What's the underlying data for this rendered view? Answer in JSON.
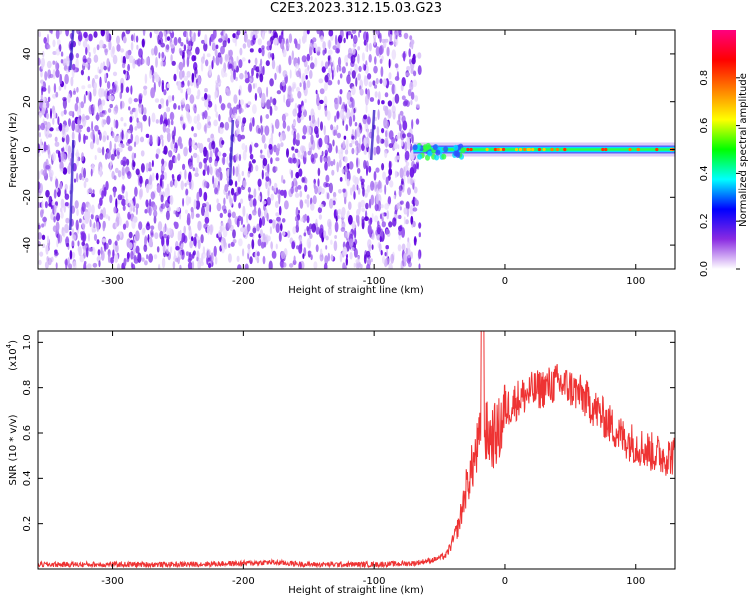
{
  "title": "C2E3.2023.312.15.03.G23",
  "chart_data": [
    {
      "type": "heatmap",
      "xlabel": "Height of straight line (km)",
      "ylabel": "Frequency (Hz)",
      "xlim": [
        -357,
        130
      ],
      "ylim": [
        -50,
        50
      ],
      "x_ticks": [
        -300,
        -200,
        -100,
        0,
        100
      ],
      "y_ticks": [
        -40,
        -20,
        0,
        20,
        40
      ],
      "noise_region_x": [
        -357,
        -65
      ],
      "signal_start_x": -70,
      "signal_freq_hz": 0,
      "colorbar": {
        "label": "Normalized spectral amplitude",
        "range": [
          0,
          1
        ],
        "ticks": [
          0.0,
          0.2,
          0.4,
          0.6,
          0.8
        ],
        "colors": [
          "#ffffff",
          "#8a2be2",
          "#0000ff",
          "#00ffff",
          "#00ff00",
          "#ffff00",
          "#ff8000",
          "#ff0000",
          "#ff007f"
        ]
      },
      "grid": false
    },
    {
      "type": "line",
      "xlabel": "Height of straight line (km)",
      "ylabel": "SNR (10 * v/v)",
      "multiplier_label": "(x10",
      "multiplier_exp": "4",
      "xlim": [
        -357,
        130
      ],
      "ylim": [
        0,
        1.05
      ],
      "x_ticks": [
        -300,
        -200,
        -100,
        0,
        100
      ],
      "y_ticks": [
        0.2,
        0.4,
        0.6,
        0.8,
        1.0
      ],
      "series_color": "#ee3333",
      "x": [
        -357,
        -300,
        -250,
        -200,
        -180,
        -150,
        -100,
        -70,
        -55,
        -45,
        -40,
        -35,
        -30,
        -25,
        -20,
        -15,
        -10,
        -5,
        0,
        10,
        20,
        30,
        40,
        50,
        60,
        70,
        80,
        90,
        100,
        110,
        120,
        130
      ],
      "values": [
        0.02,
        0.02,
        0.02,
        0.025,
        0.03,
        0.02,
        0.02,
        0.025,
        0.04,
        0.06,
        0.12,
        0.2,
        0.35,
        0.45,
        0.55,
        0.6,
        0.58,
        0.6,
        0.7,
        0.75,
        0.78,
        0.8,
        0.82,
        0.8,
        0.76,
        0.7,
        0.64,
        0.58,
        0.55,
        0.52,
        0.5,
        0.5
      ]
    }
  ]
}
